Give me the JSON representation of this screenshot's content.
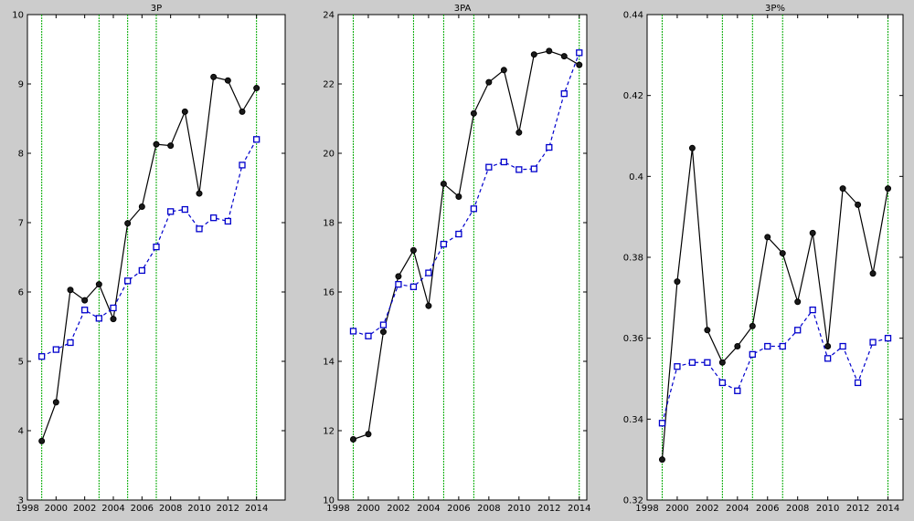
{
  "colors": {
    "background": "#cccccc",
    "plot_background": "#ffffff",
    "series_black": "#000000",
    "series_blue": "#0000cc",
    "vline_green": "#00aa00",
    "marker_fill_black": "#1a1a1a"
  },
  "chart_data": [
    {
      "type": "line",
      "title": "3P",
      "xlabel": "",
      "ylabel": "",
      "xlim": [
        1998,
        2016
      ],
      "ylim": [
        3,
        10
      ],
      "xticks": [
        "1998",
        "2000",
        "2002",
        "2004",
        "2006",
        "2008",
        "2010",
        "2012",
        "2014"
      ],
      "yticks": [
        "3",
        "4",
        "5",
        "6",
        "7",
        "8",
        "9",
        "10"
      ],
      "vlines": [
        1999,
        2003,
        2005,
        2007,
        2014
      ],
      "grid": false,
      "x": [
        1999,
        2000,
        2001,
        2002,
        2003,
        2004,
        2005,
        2006,
        2007,
        2008,
        2009,
        2010,
        2011,
        2012,
        2013,
        2014
      ],
      "series": [
        {
          "style": "black-solid-dot",
          "values": [
            3.85,
            4.41,
            6.03,
            5.88,
            6.11,
            5.61,
            6.99,
            7.23,
            8.13,
            8.11,
            8.6,
            7.42,
            9.1,
            9.05,
            8.6,
            8.94
          ]
        },
        {
          "style": "blue-dashed-square",
          "values": [
            5.07,
            5.17,
            5.27,
            5.74,
            5.62,
            5.77,
            6.16,
            6.31,
            6.65,
            7.16,
            7.19,
            6.91,
            7.07,
            7.02,
            7.83,
            8.2
          ]
        }
      ]
    },
    {
      "type": "line",
      "title": "3PA",
      "xlabel": "",
      "ylabel": "",
      "xlim": [
        1998,
        2014.5
      ],
      "ylim": [
        10,
        24
      ],
      "xticks": [
        "1998",
        "2000",
        "2002",
        "2004",
        "2006",
        "2008",
        "2010",
        "2012",
        "2014"
      ],
      "yticks": [
        "10",
        "12",
        "14",
        "16",
        "18",
        "20",
        "22",
        "24"
      ],
      "vlines": [
        1999,
        2003,
        2005,
        2007,
        2014
      ],
      "grid": false,
      "x": [
        1999,
        2000,
        2001,
        2002,
        2003,
        2004,
        2005,
        2006,
        2007,
        2008,
        2009,
        2010,
        2011,
        2012,
        2013,
        2014
      ],
      "series": [
        {
          "style": "black-solid-dot",
          "values": [
            11.75,
            11.9,
            14.85,
            16.45,
            17.2,
            15.6,
            19.12,
            18.75,
            21.15,
            22.05,
            22.4,
            20.6,
            22.85,
            22.95,
            22.8,
            22.55
          ]
        },
        {
          "style": "blue-dashed-square",
          "values": [
            14.87,
            14.73,
            15.05,
            16.22,
            16.15,
            16.55,
            17.38,
            17.67,
            18.4,
            19.6,
            19.75,
            19.53,
            19.55,
            20.17,
            21.72,
            22.9
          ]
        }
      ]
    },
    {
      "type": "line",
      "title": "3P%",
      "xlabel": "",
      "ylabel": "",
      "xlim": [
        1998,
        2015
      ],
      "ylim": [
        0.32,
        0.44
      ],
      "xticks": [
        "1998",
        "2000",
        "2002",
        "2004",
        "2006",
        "2008",
        "2010",
        "2012",
        "2014"
      ],
      "yticks": [
        "0.32",
        "0.34",
        "0.36",
        "0.38",
        "0.4",
        "0.42",
        "0.44"
      ],
      "vlines": [
        1999,
        2003,
        2005,
        2007,
        2014
      ],
      "grid": false,
      "x": [
        1999,
        2000,
        2001,
        2002,
        2003,
        2004,
        2005,
        2006,
        2007,
        2008,
        2009,
        2010,
        2011,
        2012,
        2013,
        2014
      ],
      "series": [
        {
          "style": "black-solid-dot",
          "values": [
            0.33,
            0.374,
            0.407,
            0.362,
            0.354,
            0.358,
            0.363,
            0.385,
            0.381,
            0.369,
            0.386,
            0.358,
            0.397,
            0.393,
            0.376,
            0.397
          ]
        },
        {
          "style": "blue-dashed-square",
          "values": [
            0.339,
            0.353,
            0.354,
            0.354,
            0.349,
            0.347,
            0.356,
            0.358,
            0.358,
            0.362,
            0.367,
            0.355,
            0.358,
            0.349,
            0.359,
            0.36
          ]
        }
      ]
    }
  ]
}
